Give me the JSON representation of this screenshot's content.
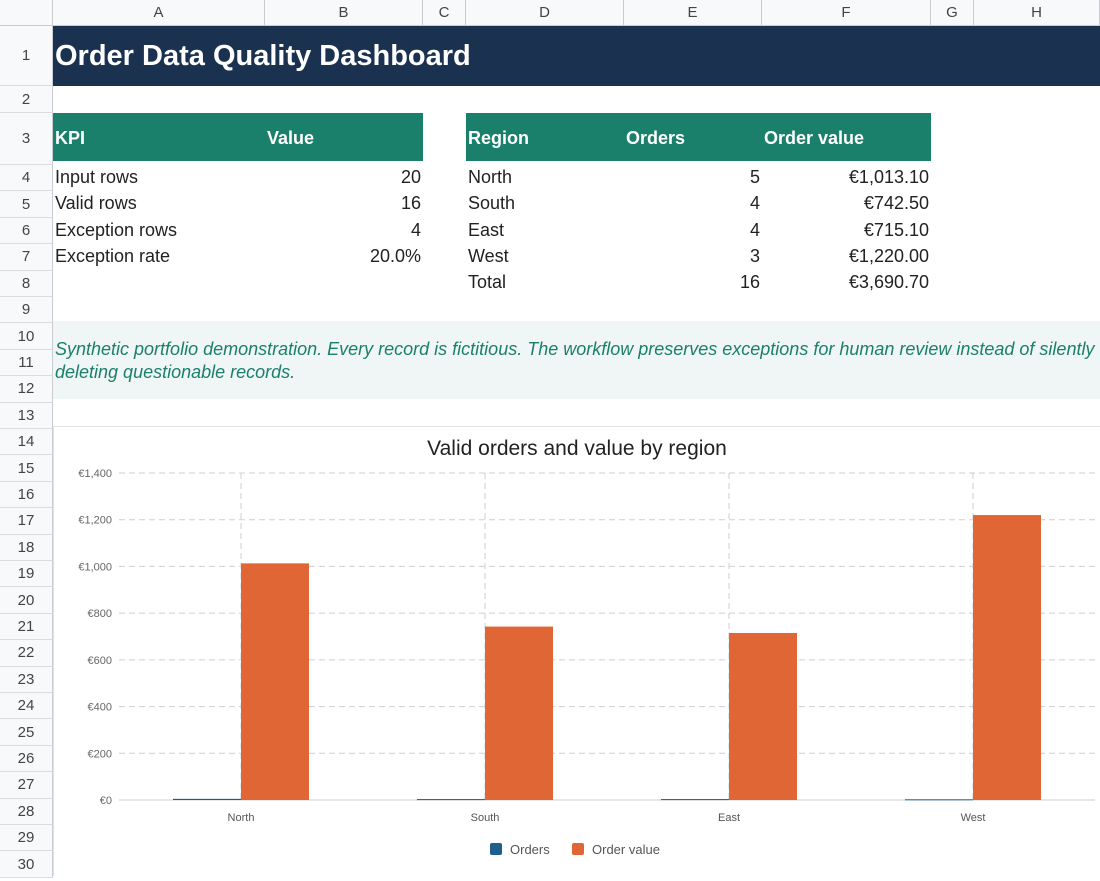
{
  "columns": [
    "A",
    "B",
    "C",
    "D",
    "E",
    "F",
    "G",
    "H"
  ],
  "rows": [
    "1",
    "2",
    "3",
    "4",
    "5",
    "6",
    "7",
    "8",
    "9",
    "10",
    "11",
    "12",
    "13",
    "14",
    "15",
    "16",
    "17",
    "18",
    "19",
    "20",
    "21",
    "22",
    "23",
    "24",
    "25",
    "26",
    "27",
    "28",
    "29",
    "30"
  ],
  "title": "Order Data Quality Dashboard",
  "kpi_table": {
    "headers": [
      "KPI",
      "Value"
    ],
    "rows": [
      {
        "label": "Input rows",
        "value": "20"
      },
      {
        "label": "Valid rows",
        "value": "16"
      },
      {
        "label": "Exception rows",
        "value": "4"
      },
      {
        "label": "Exception rate",
        "value": "20.0%"
      }
    ]
  },
  "region_table": {
    "headers": [
      "Region",
      "Orders",
      "Order value"
    ],
    "rows": [
      {
        "region": "North",
        "orders": "5",
        "value": "€1,013.10"
      },
      {
        "region": "South",
        "orders": "4",
        "value": "€742.50"
      },
      {
        "region": "East",
        "orders": "4",
        "value": "€715.10"
      },
      {
        "region": "West",
        "orders": "3",
        "value": "€1,220.00"
      },
      {
        "region": "Total",
        "orders": "16",
        "value": "€3,690.70"
      }
    ]
  },
  "note": "Synthetic portfolio demonstration. Every record is fictitious. The workflow preserves exceptions for human review instead of silently deleting questionable records.",
  "colors": {
    "title_bg": "#1b3150",
    "header_bg": "#1a7f6b",
    "note_bg": "#eff6f5",
    "orders_series": "#1f5f8b",
    "value_series": "#e06636"
  },
  "chart_data": {
    "type": "bar",
    "title": "Valid orders and value by region",
    "categories": [
      "North",
      "South",
      "East",
      "West"
    ],
    "series": [
      {
        "name": "Orders",
        "values": [
          5,
          4,
          4,
          3
        ]
      },
      {
        "name": "Order value",
        "values": [
          1013.1,
          742.5,
          715.1,
          1220.0
        ]
      }
    ],
    "ylim": [
      0,
      1400
    ],
    "yticks": [
      "€0",
      "€200",
      "€400",
      "€600",
      "€800",
      "€1,000",
      "€1,200",
      "€1,400"
    ],
    "grid": true,
    "legend": "bottom"
  }
}
